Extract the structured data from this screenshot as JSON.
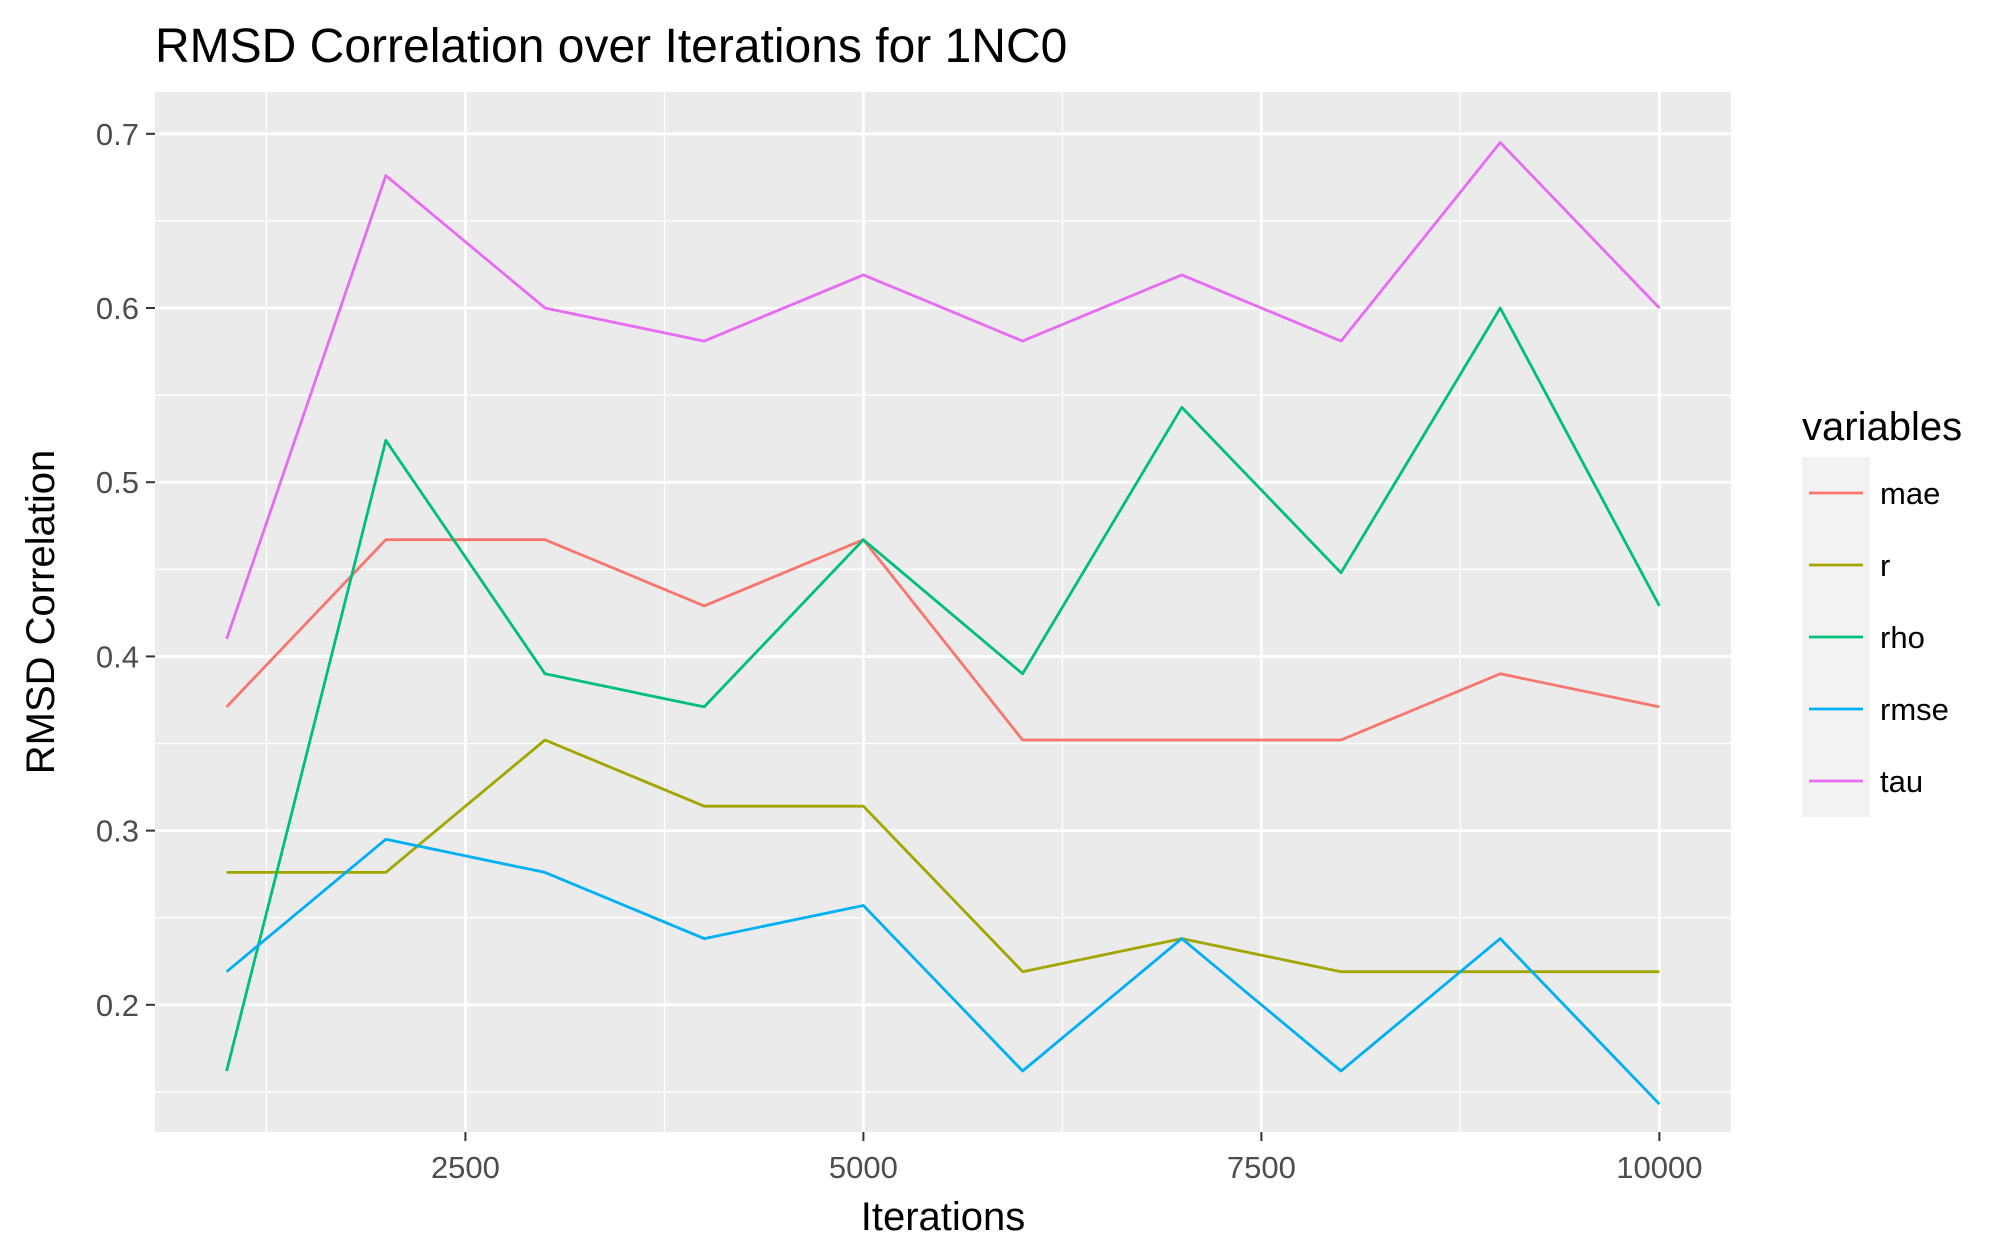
{
  "chart_data": {
    "type": "line",
    "title": "RMSD Correlation over Iterations for 1NC0",
    "xlabel": "Iterations",
    "ylabel": "RMSD Correlation",
    "xlim": [
      550,
      10450
    ],
    "ylim": [
      0.127,
      0.724
    ],
    "x_ticks": [
      2500,
      5000,
      7500,
      10000
    ],
    "x_tick_labels": [
      "2500",
      "5000",
      "7500",
      "10000"
    ],
    "y_ticks": [
      0.2,
      0.3,
      0.4,
      0.5,
      0.6,
      0.7
    ],
    "y_tick_labels": [
      "0.2",
      "0.3",
      "0.4",
      "0.5",
      "0.6",
      "0.7"
    ],
    "grid": true,
    "background": "#ebebeb",
    "legend": {
      "title": "variables",
      "position": "right"
    },
    "x": [
      1000,
      2000,
      3000,
      4000,
      5000,
      6000,
      7000,
      8000,
      9000,
      10000
    ],
    "series": [
      {
        "name": "mae",
        "color": "#F8766D",
        "values": [
          0.371,
          0.467,
          0.467,
          0.429,
          0.467,
          0.352,
          0.352,
          0.352,
          0.39,
          0.371
        ]
      },
      {
        "name": "r",
        "color": "#A3A500",
        "values": [
          0.276,
          0.276,
          0.352,
          0.314,
          0.314,
          0.219,
          0.238,
          0.219,
          0.219,
          0.219
        ]
      },
      {
        "name": "rho",
        "color": "#00BF7D",
        "values": [
          0.162,
          0.524,
          0.39,
          0.371,
          0.467,
          0.39,
          0.543,
          0.448,
          0.6,
          0.429
        ]
      },
      {
        "name": "rmse",
        "color": "#00B0F6",
        "values": [
          0.219,
          0.295,
          0.276,
          0.238,
          0.257,
          0.162,
          0.238,
          0.162,
          0.238,
          0.143
        ]
      },
      {
        "name": "tau",
        "color": "#E76BF3",
        "values": [
          0.41,
          0.676,
          0.6,
          0.581,
          0.619,
          0.581,
          0.619,
          0.581,
          0.695,
          0.6
        ]
      }
    ]
  }
}
